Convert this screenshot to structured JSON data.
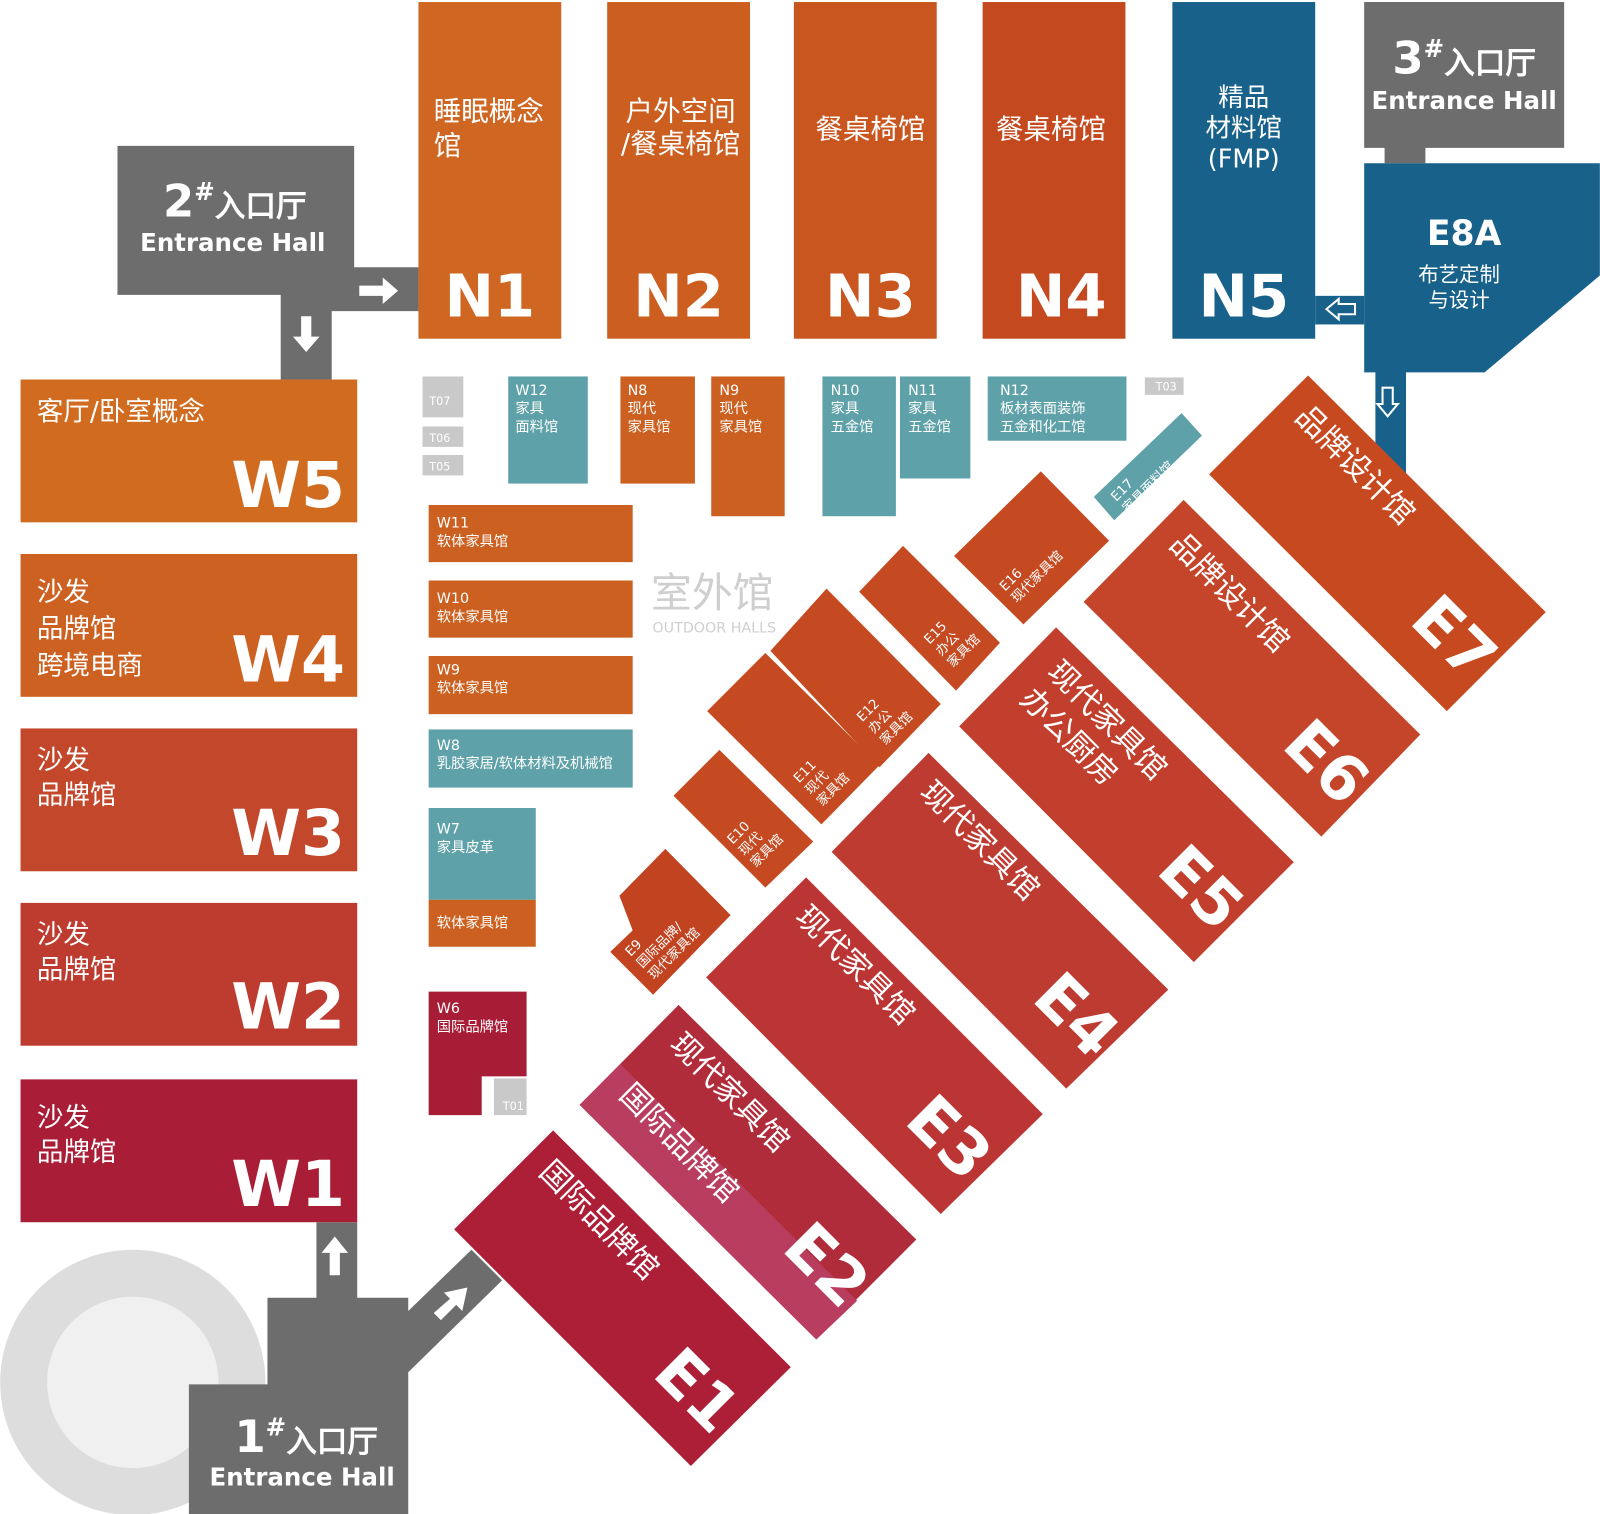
{
  "entrances": [
    {
      "number": "1",
      "sup": "#",
      "name": "入口厅",
      "en": "Entrance Hall"
    },
    {
      "number": "2",
      "sup": "#",
      "name": "入口厅",
      "en": "Entrance Hall"
    },
    {
      "number": "3",
      "sup": "#",
      "name": "入口厅",
      "en": "Entrance Hall"
    }
  ],
  "outdoor": {
    "title": "室外馆",
    "subtitle": "OUTDOOR HALLS"
  },
  "halls": [
    {
      "code": "N1",
      "lines": [
        "睡眠概念",
        "馆"
      ]
    },
    {
      "code": "N2",
      "lines": [
        "户外空间",
        "/餐桌椅馆"
      ]
    },
    {
      "code": "N3",
      "lines": [
        "餐桌椅馆"
      ]
    },
    {
      "code": "N4",
      "lines": [
        "餐桌椅馆"
      ]
    },
    {
      "code": "N5",
      "lines": [
        "精品",
        "材料馆",
        "(FMP)"
      ]
    },
    {
      "code": "E8A",
      "lines": [
        "布艺定制",
        "与设计"
      ]
    },
    {
      "code": "W5",
      "lines": [
        "客厅/卧室概念"
      ]
    },
    {
      "code": "W4",
      "lines": [
        "沙发",
        "品牌馆",
        "跨境电商"
      ]
    },
    {
      "code": "W3",
      "lines": [
        "沙发",
        "品牌馆"
      ]
    },
    {
      "code": "W2",
      "lines": [
        "沙发",
        "品牌馆"
      ]
    },
    {
      "code": "W1",
      "lines": [
        "沙发",
        "品牌馆"
      ]
    },
    {
      "lines": [
        "W12",
        "家具",
        "面料馆"
      ]
    },
    {
      "lines": [
        "N8",
        "现代",
        "家具馆"
      ]
    },
    {
      "lines": [
        "N9",
        "现代",
        "家具馆"
      ]
    },
    {
      "lines": [
        "N10",
        "家具",
        "五金馆"
      ]
    },
    {
      "lines": [
        "N11",
        "家具",
        "五金馆"
      ]
    },
    {
      "lines": [
        "N12",
        "板材表面装饰",
        "五金和化工馆"
      ]
    },
    {
      "lines": [
        "W11",
        "软体家具馆"
      ]
    },
    {
      "lines": [
        "W10",
        "软体家具馆"
      ]
    },
    {
      "lines": [
        "W9",
        "软体家具馆"
      ]
    },
    {
      "lines": [
        "W8",
        "乳胶家居/软体材料及机械馆"
      ]
    },
    {
      "lines": [
        "W7",
        "家具皮革"
      ]
    },
    {
      "lines": [
        "软体家具馆"
      ]
    },
    {
      "lines": [
        "W6",
        "国际品牌馆"
      ]
    },
    {
      "code": "E1",
      "lines": [
        "国际品牌馆"
      ]
    },
    {
      "code": "E2",
      "lines": [
        "现代家具馆",
        "国际品牌馆"
      ]
    },
    {
      "code": "E3",
      "lines": [
        "现代家具馆"
      ]
    },
    {
      "code": "E4",
      "lines": [
        "现代家具馆"
      ]
    },
    {
      "code": "E5",
      "lines": [
        "现代家具馆",
        "办公厨房"
      ]
    },
    {
      "code": "E6",
      "lines": [
        "品牌设计馆"
      ]
    },
    {
      "code": "E7",
      "lines": [
        "品牌设计馆"
      ]
    },
    {
      "lines": [
        "E9",
        "国际品牌/",
        "现代家具馆"
      ]
    },
    {
      "lines": [
        "E10",
        "现代",
        "家具馆"
      ]
    },
    {
      "lines": [
        "E11",
        "现代",
        "家具馆"
      ]
    },
    {
      "lines": [
        "E12",
        "办公",
        "家具馆"
      ]
    },
    {
      "lines": [
        "E15",
        "办公",
        "家具馆"
      ]
    },
    {
      "lines": [
        "E16",
        "现代家具馆"
      ]
    },
    {
      "lines": [
        "E17",
        "家具面料馆"
      ]
    },
    {
      "lines": [
        "T01"
      ]
    },
    {
      "lines": [
        "T03"
      ]
    },
    {
      "lines": [
        "T05"
      ]
    },
    {
      "lines": [
        "T06"
      ]
    },
    {
      "lines": [
        "T07"
      ]
    }
  ]
}
